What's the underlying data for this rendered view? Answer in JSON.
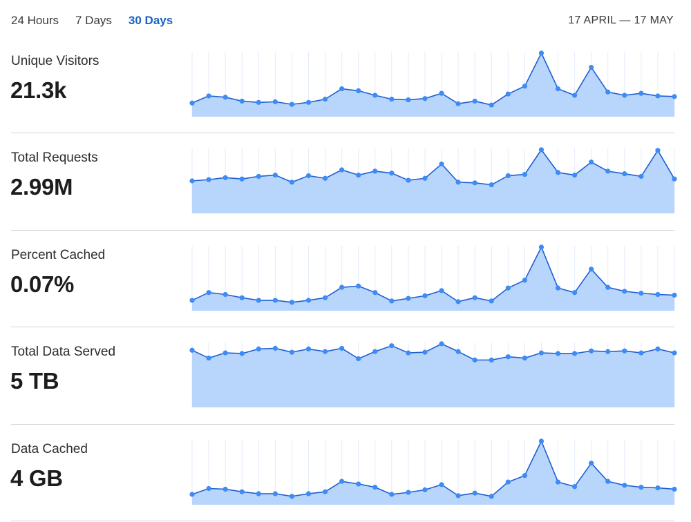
{
  "tabs": [
    {
      "label": "24 Hours",
      "active": false
    },
    {
      "label": "7 Days",
      "active": false
    },
    {
      "label": "30 Days",
      "active": true
    }
  ],
  "date_range": "17 APRIL — 17 MAY",
  "colors": {
    "accent": "#1a5fc8",
    "line": "#1f5fd0",
    "point": "#3d8bf5",
    "fill": "#b8d5fb",
    "gridline": "#e4ebf9"
  },
  "metrics": [
    {
      "label": "Unique Visitors",
      "value": "21.3k"
    },
    {
      "label": "Total Requests",
      "value": "2.99M"
    },
    {
      "label": "Percent Cached",
      "value": "0.07%"
    },
    {
      "label": "Total Data Served",
      "value": "5 TB"
    },
    {
      "label": "Data Cached",
      "value": "4 GB"
    }
  ],
  "chart_data": [
    {
      "type": "area",
      "ylim": [
        0,
        100
      ],
      "y": [
        21,
        32,
        30,
        24,
        22,
        23,
        19,
        22,
        27,
        43,
        40,
        33,
        27,
        26,
        28,
        36,
        20,
        24,
        18,
        35,
        47,
        98,
        43,
        33,
        76,
        38,
        33,
        36,
        32,
        31
      ]
    },
    {
      "type": "area",
      "ylim": [
        0,
        100
      ],
      "y": [
        50,
        52,
        55,
        53,
        57,
        59,
        48,
        58,
        54,
        67,
        59,
        65,
        62,
        51,
        54,
        76,
        48,
        47,
        44,
        58,
        60,
        98,
        63,
        59,
        79,
        65,
        61,
        57,
        97,
        53
      ]
    },
    {
      "type": "area",
      "ylim": [
        0,
        100
      ],
      "y": [
        16,
        28,
        25,
        20,
        16,
        16,
        13,
        16,
        20,
        36,
        38,
        28,
        15,
        19,
        23,
        31,
        14,
        20,
        15,
        35,
        47,
        98,
        35,
        28,
        64,
        36,
        30,
        27,
        25,
        24
      ]
    },
    {
      "type": "area",
      "ylim": [
        0,
        100
      ],
      "y": [
        88,
        76,
        84,
        83,
        90,
        91,
        85,
        90,
        86,
        91,
        75,
        86,
        95,
        84,
        85,
        98,
        86,
        73,
        73,
        78,
        76,
        84,
        83,
        83,
        87,
        86,
        87,
        84,
        90,
        84
      ]
    },
    {
      "type": "area",
      "ylim": [
        0,
        100
      ],
      "y": [
        16,
        25,
        24,
        20,
        17,
        17,
        13,
        17,
        20,
        36,
        32,
        27,
        16,
        19,
        23,
        31,
        14,
        18,
        13,
        35,
        45,
        98,
        35,
        28,
        64,
        36,
        30,
        27,
        26,
        24
      ]
    }
  ]
}
